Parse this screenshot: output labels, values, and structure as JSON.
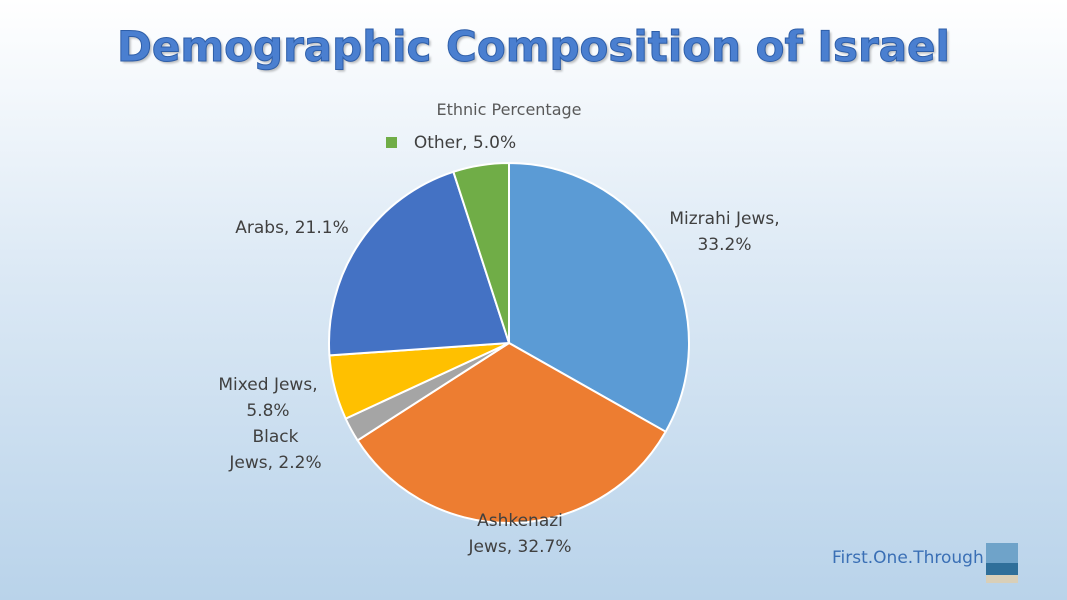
{
  "chart_data": {
    "type": "pie",
    "title": "Demographic Composition of Israel",
    "subtitle": "Ethnic Percentage",
    "values": [
      33.2,
      32.7,
      2.2,
      5.8,
      21.1,
      5.0
    ],
    "value_labels": [
      "Mizrahi Jews, 33.2%",
      "Ashkenazi Jews, 32.7%",
      "Black Jews, 2.2%",
      "Mixed Jews, 5.8%",
      "Arabs, 21.1%",
      "Other, 5.0%"
    ],
    "colors": [
      "#5b9bd5",
      "#ed7d31",
      "#a5a5a5",
      "#ffc000",
      "#4472c4",
      "#70ad47"
    ]
  },
  "footer": {
    "credit": "First.One.Through"
  }
}
